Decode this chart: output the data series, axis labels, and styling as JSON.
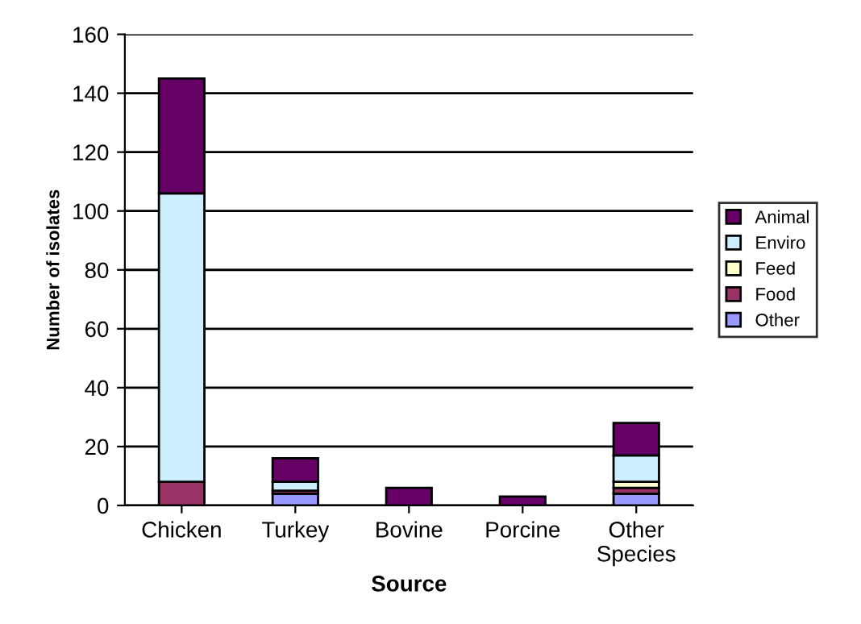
{
  "chart_data": {
    "type": "bar",
    "stacked": true,
    "xlabel": "Source",
    "ylabel": "Number of isolates",
    "categories": [
      "Chicken",
      "Turkey",
      "Bovine",
      "Porcine",
      "Other\nSpecies"
    ],
    "series": [
      {
        "name": "Other",
        "color": "#9999ff",
        "values": [
          0,
          4,
          0,
          0,
          4
        ]
      },
      {
        "name": "Food",
        "color": "#993366",
        "values": [
          8,
          1,
          0,
          0,
          2
        ]
      },
      {
        "name": "Feed",
        "color": "#ffffcc",
        "values": [
          0,
          0,
          0,
          0,
          2
        ]
      },
      {
        "name": "Enviro",
        "color": "#cceeff",
        "values": [
          98,
          3,
          0,
          0,
          9
        ]
      },
      {
        "name": "Animal",
        "color": "#660066",
        "values": [
          39,
          8,
          6,
          3,
          11
        ]
      }
    ],
    "ylim": [
      0,
      160
    ],
    "yticks": [
      0,
      20,
      40,
      60,
      80,
      100,
      120,
      140,
      160
    ],
    "grid": "y",
    "legend": "right"
  }
}
